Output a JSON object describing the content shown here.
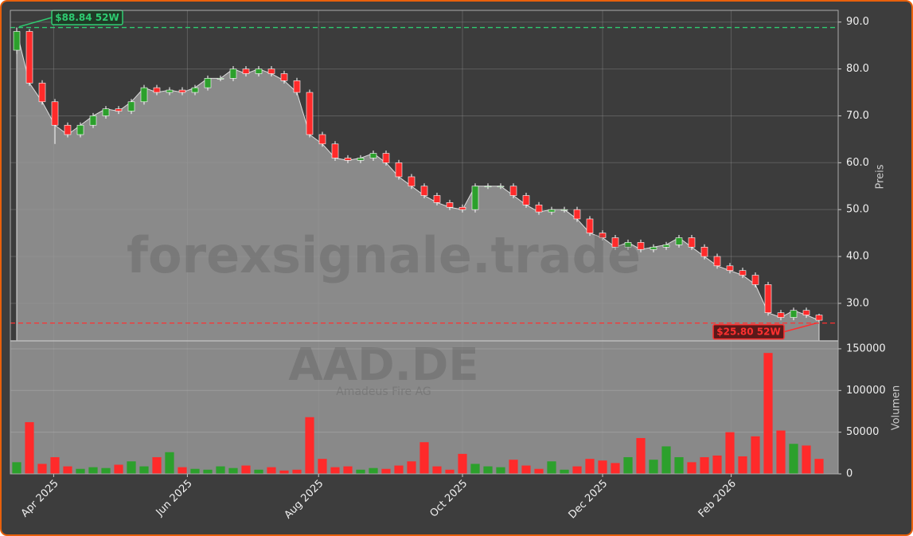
{
  "watermark": {
    "site": "forexsignale.trade",
    "symbol": "AAD.DE",
    "company": "Amadeus Fire AG"
  },
  "chart_data": [
    {
      "type": "candlestick",
      "ylabel": "Preis",
      "x": [
        0,
        1,
        2,
        3,
        4,
        5,
        6,
        7,
        8,
        9,
        10,
        11,
        12,
        13,
        14,
        15,
        16,
        17,
        18,
        19,
        20,
        21,
        22,
        23,
        24,
        25,
        26,
        27,
        28,
        29,
        30,
        31,
        32,
        33,
        34,
        35,
        36,
        37,
        38,
        39,
        40,
        41,
        42,
        43,
        44,
        45,
        46,
        47,
        48,
        49,
        50,
        51,
        52,
        53,
        54,
        55,
        56,
        57,
        58,
        59,
        60,
        61,
        62,
        63
      ],
      "open": [
        84,
        88,
        77,
        73,
        68,
        66,
        68,
        70,
        71.5,
        71,
        73,
        76,
        75,
        75.5,
        75,
        76,
        78,
        78,
        80,
        79,
        80,
        79,
        77.5,
        75,
        66,
        64,
        61,
        60.5,
        61,
        62,
        60,
        57,
        55,
        53,
        51.5,
        50.5,
        50,
        55,
        55,
        55,
        53,
        51,
        49.5,
        50,
        50,
        48,
        45,
        44,
        42,
        43,
        41.5,
        42,
        42.5,
        44,
        42,
        40,
        38,
        37,
        36,
        34,
        28,
        27,
        28.5,
        27.5
      ],
      "high": [
        88.84,
        88.5,
        77.6,
        73.6,
        68.6,
        68.6,
        70.6,
        72.1,
        72.1,
        73.6,
        76.6,
        76.6,
        76.1,
        76.1,
        76.6,
        78.6,
        78.6,
        80.6,
        80.6,
        80.6,
        80.6,
        79.6,
        78.1,
        75.6,
        66.6,
        64.6,
        61.6,
        61.6,
        62.6,
        62.6,
        60.6,
        57.6,
        55.6,
        53.6,
        52.1,
        51.1,
        55.6,
        55.6,
        55.6,
        55.6,
        53.6,
        51.6,
        50.6,
        50.6,
        50.6,
        48.6,
        45.6,
        44.6,
        43.6,
        43.6,
        42.6,
        43.1,
        44.6,
        44.6,
        42.6,
        40.6,
        38.6,
        37.6,
        36.6,
        34.6,
        28.6,
        29.1,
        29.1,
        27.8
      ],
      "low": [
        83.2,
        76.4,
        72.4,
        64,
        65.4,
        65.4,
        67.4,
        69.4,
        70.4,
        70.4,
        72.4,
        74.4,
        74.4,
        74.4,
        74.4,
        75.4,
        77.4,
        77.4,
        78.4,
        78.4,
        78.4,
        76.9,
        74.4,
        65.4,
        63.4,
        60.4,
        59.9,
        59.9,
        60.4,
        59.4,
        56.4,
        54.4,
        52.4,
        50.9,
        49.9,
        49.4,
        49.4,
        54.4,
        54.4,
        52.4,
        50.4,
        48.9,
        48.9,
        49.4,
        47.4,
        44.4,
        43.4,
        41.4,
        41.4,
        40.9,
        40.9,
        41.4,
        41.9,
        41.4,
        39.4,
        37.4,
        36.4,
        35.4,
        33.4,
        27.4,
        26.4,
        26.4,
        26.9,
        25.8
      ],
      "close": [
        88,
        77,
        73,
        68,
        66,
        68,
        70,
        71.5,
        71,
        73,
        76,
        75,
        75.5,
        75,
        76,
        78,
        78,
        80,
        79,
        80,
        79,
        77.5,
        75,
        66,
        64,
        61,
        60.5,
        61,
        62,
        60,
        57,
        55,
        53,
        51.5,
        50.5,
        50,
        55,
        55,
        55,
        53,
        51,
        49.5,
        50,
        50,
        48,
        45,
        44,
        42,
        43,
        41.5,
        42,
        42.5,
        44,
        42,
        40,
        38,
        37,
        36,
        34,
        28,
        27,
        28.5,
        27.5,
        26.4
      ],
      "up_color": "#2ca02c",
      "down_color": "#ff2a2a",
      "area_color": "#8a8a8a",
      "xlim": [
        -0.5,
        64.5
      ],
      "xticks": [
        {
          "value": 2.9,
          "label": "Apr 2025"
        },
        {
          "value": 13.4,
          "label": "Jun 2025"
        },
        {
          "value": 23.7,
          "label": "Aug 2025"
        },
        {
          "value": 35,
          "label": "Oct 2025"
        },
        {
          "value": 46,
          "label": "Dec 2025"
        },
        {
          "value": 56.1,
          "label": "Feb 2026"
        }
      ],
      "ylim": [
        22,
        92.5
      ],
      "yticks": [
        {
          "value": 30,
          "label": "30.0"
        },
        {
          "value": 40,
          "label": "40.0"
        },
        {
          "value": 50,
          "label": "50.0"
        },
        {
          "value": 60,
          "label": "60.0"
        },
        {
          "value": 70,
          "label": "70.0"
        },
        {
          "value": 80,
          "label": "80.0"
        },
        {
          "value": 90,
          "label": "90.0"
        }
      ],
      "grid": true,
      "annotations": [
        {
          "text": "$88.84 52W",
          "value": 88.84,
          "x": 0,
          "color": "#2ecc71"
        },
        {
          "text": "$25.80 52W",
          "value": 25.8,
          "x": 63,
          "color": "#ff3030"
        }
      ]
    },
    {
      "type": "bar",
      "ylabel": "Volumen",
      "x": [
        0,
        1,
        2,
        3,
        4,
        5,
        6,
        7,
        8,
        9,
        10,
        11,
        12,
        13,
        14,
        15,
        16,
        17,
        18,
        19,
        20,
        21,
        22,
        23,
        24,
        25,
        26,
        27,
        28,
        29,
        30,
        31,
        32,
        33,
        34,
        35,
        36,
        37,
        38,
        39,
        40,
        41,
        42,
        43,
        44,
        45,
        46,
        47,
        48,
        49,
        50,
        51,
        52,
        53,
        54,
        55,
        56,
        57,
        58,
        59,
        60,
        61,
        62,
        63
      ],
      "values": [
        14000,
        62000,
        12000,
        20000,
        9000,
        6000,
        8000,
        7000,
        11000,
        15000,
        9000,
        20000,
        26000,
        8000,
        6000,
        5000,
        9000,
        7000,
        10000,
        5000,
        8000,
        4000,
        5000,
        68000,
        18000,
        8000,
        9000,
        5000,
        7000,
        6000,
        10000,
        15000,
        38000,
        9000,
        5000,
        24000,
        12000,
        9000,
        8000,
        17000,
        10000,
        6000,
        15000,
        5000,
        9000,
        18000,
        16000,
        13000,
        20000,
        43000,
        17000,
        33000,
        20000,
        14000,
        20000,
        22000,
        50000,
        21000,
        45000,
        145000,
        52000,
        36000,
        34000,
        18000
      ],
      "ylim": [
        0,
        159500
      ],
      "yticks": [
        0,
        50000,
        100000,
        150000
      ],
      "grid": true
    }
  ]
}
